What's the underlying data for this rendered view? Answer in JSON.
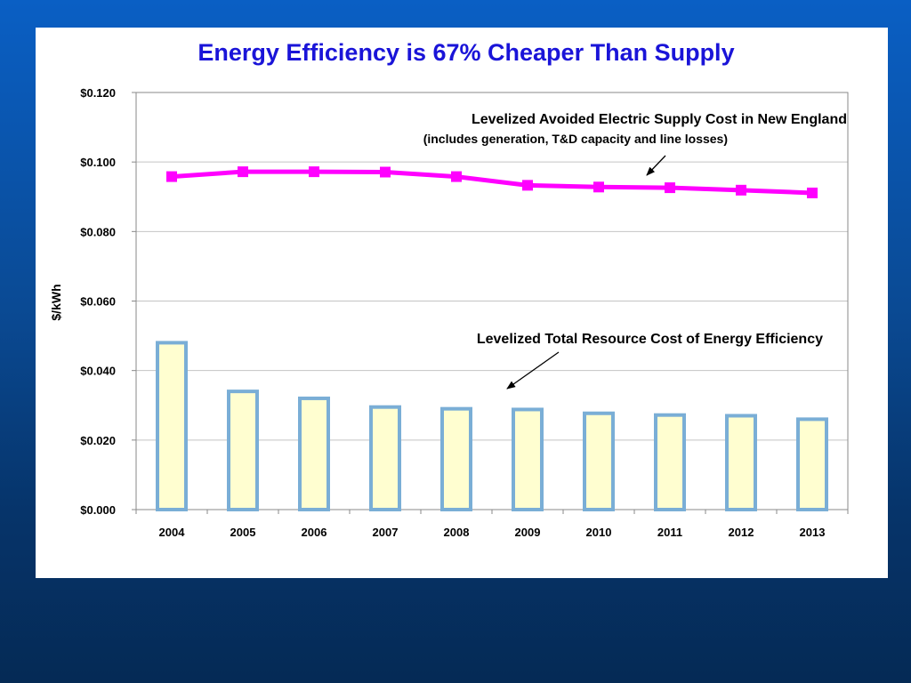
{
  "slide": {
    "title": "Energy Efficiency is 67% Cheaper Than Supply",
    "colors": {
      "background_top": "#0a5fc4",
      "background_bottom": "#052a55",
      "title": "#1a14d8",
      "supply_line": "#ff00ff",
      "efficiency_bar_fill": "#fffed0",
      "efficiency_bar_edge": "#7aaed6"
    }
  },
  "chart_data": {
    "type": "bar",
    "categories": [
      "2004",
      "2005",
      "2006",
      "2007",
      "2008",
      "2009",
      "2010",
      "2011",
      "2012",
      "2013"
    ],
    "ylabel": "$/kWh",
    "xlabel": "",
    "ylim": [
      0,
      0.12
    ],
    "yticks": [
      "$0.000",
      "$0.020",
      "$0.040",
      "$0.060",
      "$0.080",
      "$0.100",
      "$0.120"
    ],
    "ytick_values": [
      0,
      0.02,
      0.04,
      0.06,
      0.08,
      0.1,
      0.12
    ],
    "grid": true,
    "series": [
      {
        "name": "Levelized Total Resource Cost of Energy Efficiency",
        "type": "bar",
        "values": [
          0.048,
          0.034,
          0.032,
          0.0295,
          0.029,
          0.0288,
          0.0277,
          0.0272,
          0.027,
          0.026
        ]
      },
      {
        "name": "Levelized Avoided Electric Supply Cost in New England",
        "type": "line",
        "values": [
          0.0958,
          0.0972,
          0.0972,
          0.0971,
          0.0958,
          0.0933,
          0.0928,
          0.0926,
          0.0919,
          0.0911
        ]
      }
    ],
    "annotations": [
      {
        "text": "Levelized Avoided Electric Supply Cost in New England",
        "subtext": "(includes generation, T&D capacity and line losses)"
      },
      {
        "text": "Levelized Total Resource Cost of Energy Efficiency"
      }
    ]
  }
}
